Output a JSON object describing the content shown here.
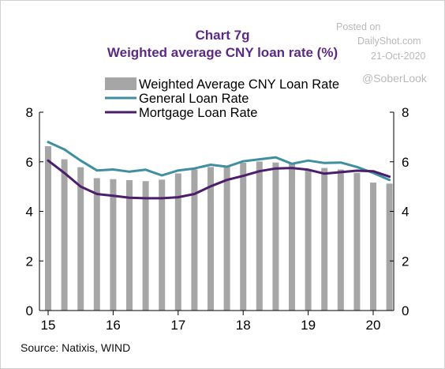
{
  "watermark": {
    "posted_on": "Posted on",
    "site": "DailyShot.com",
    "date": "21-Oct-2020",
    "handle": "@SoberLook"
  },
  "source": "Source: Natixis, WIND",
  "colors": {
    "bars": "#a6a6a6",
    "general": "#3f8fa0",
    "mortgage": "#4b1d6b",
    "title": "#5b2a86"
  },
  "chart_data": {
    "type": "bar+line",
    "title": "Chart 7g",
    "subtitle": "Weighted average CNY loan rate (%)",
    "ylim": [
      0,
      8
    ],
    "yticks": [
      0,
      2,
      4,
      6,
      8
    ],
    "y2ticks": [
      0,
      2,
      4,
      6,
      8
    ],
    "xlim": [
      2015.0,
      2020.33
    ],
    "xticks": [
      {
        "value": 2015,
        "label": "15"
      },
      {
        "value": 2016,
        "label": "16"
      },
      {
        "value": 2017,
        "label": "17"
      },
      {
        "value": 2018,
        "label": "18"
      },
      {
        "value": 2019,
        "label": "19"
      },
      {
        "value": 2020,
        "label": "20"
      }
    ],
    "legend_position": "top-left",
    "grid": false,
    "bars": {
      "name": "Weighted Average CNY Loan Rate",
      "x": [
        2015.0,
        2015.25,
        2015.5,
        2015.75,
        2016.0,
        2016.25,
        2016.5,
        2016.75,
        2017.0,
        2017.25,
        2017.5,
        2017.75,
        2018.0,
        2018.25,
        2018.5,
        2018.75,
        2019.0,
        2019.25,
        2019.5,
        2019.75,
        2020.0,
        2020.25
      ],
      "values": [
        6.63,
        6.1,
        5.78,
        5.34,
        5.3,
        5.26,
        5.22,
        5.28,
        5.53,
        5.69,
        5.79,
        5.82,
        5.96,
        6.01,
        5.97,
        5.94,
        5.69,
        5.75,
        5.69,
        5.55,
        5.16,
        5.12
      ]
    },
    "series": [
      {
        "name": "General Loan Rate",
        "x": [
          2015.0,
          2015.25,
          2015.5,
          2015.75,
          2016.0,
          2016.25,
          2016.5,
          2016.75,
          2017.0,
          2017.25,
          2017.5,
          2017.75,
          2018.0,
          2018.25,
          2018.5,
          2018.75,
          2019.0,
          2019.25,
          2019.5,
          2019.75,
          2020.0,
          2020.25
        ],
        "values": [
          6.8,
          6.5,
          6.05,
          5.65,
          5.69,
          5.6,
          5.68,
          5.45,
          5.65,
          5.73,
          5.88,
          5.8,
          6.02,
          6.1,
          6.18,
          5.92,
          6.05,
          5.95,
          5.97,
          5.79,
          5.55,
          5.27
        ]
      },
      {
        "name": "Mortgage Loan Rate",
        "x": [
          2015.0,
          2015.25,
          2015.5,
          2015.75,
          2016.0,
          2016.25,
          2016.5,
          2016.75,
          2017.0,
          2017.25,
          2017.5,
          2017.75,
          2018.0,
          2018.25,
          2018.5,
          2018.75,
          2019.0,
          2019.25,
          2019.5,
          2019.75,
          2020.0,
          2020.25
        ],
        "values": [
          6.05,
          5.55,
          5.0,
          4.7,
          4.63,
          4.55,
          4.53,
          4.53,
          4.57,
          4.7,
          5.01,
          5.27,
          5.43,
          5.62,
          5.73,
          5.75,
          5.68,
          5.52,
          5.58,
          5.64,
          5.62,
          5.4
        ]
      }
    ]
  }
}
